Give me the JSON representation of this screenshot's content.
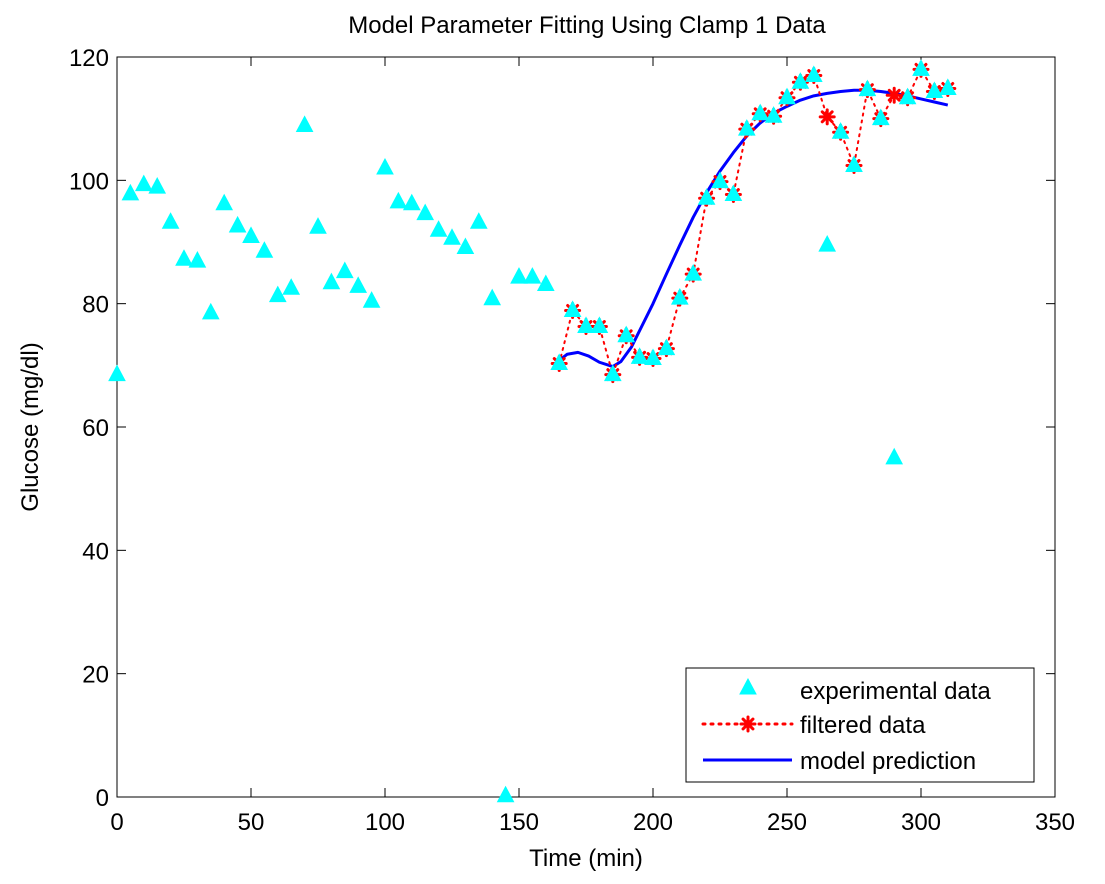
{
  "chart_data": {
    "type": "scatter",
    "title": "Model Parameter Fitting Using Clamp 1 Data",
    "xlabel": "Time (min)",
    "ylabel": "Glucose (mg/dl)",
    "xlim": [
      0,
      350
    ],
    "ylim": [
      0,
      120
    ],
    "xticks": [
      0,
      50,
      100,
      150,
      200,
      250,
      300,
      350
    ],
    "yticks": [
      0,
      20,
      40,
      60,
      80,
      100,
      120
    ],
    "grid": false,
    "legend_position": "bottom-right",
    "series": [
      {
        "name": "experimental data",
        "style": "triangle markers",
        "color": "#00FFFF",
        "x": [
          0,
          5,
          10,
          15,
          20,
          25,
          30,
          35,
          40,
          45,
          50,
          55,
          60,
          65,
          70,
          75,
          80,
          85,
          90,
          95,
          100,
          105,
          110,
          115,
          120,
          125,
          130,
          135,
          140,
          145,
          150,
          155,
          160,
          165,
          170,
          175,
          180,
          185,
          190,
          195,
          200,
          205,
          210,
          215,
          220,
          225,
          230,
          235,
          240,
          245,
          250,
          255,
          260,
          265,
          270,
          275,
          280,
          285,
          290,
          295,
          300,
          305,
          310
        ],
        "y": [
          68.5,
          97.8,
          99.3,
          98.9,
          93.2,
          87.2,
          86.9,
          78.5,
          96.2,
          92.6,
          90.9,
          88.5,
          81.3,
          82.5,
          108.9,
          92.4,
          83.4,
          85.2,
          82.8,
          80.4,
          102.0,
          96.5,
          96.2,
          94.6,
          91.9,
          90.6,
          89.1,
          93.2,
          80.8,
          0.2,
          84.3,
          84.3,
          83.1,
          70.3,
          78.9,
          76.3,
          76.3,
          68.5,
          74.8,
          71.3,
          71.1,
          72.7,
          80.9,
          84.8,
          97.1,
          99.8,
          97.7,
          108.3,
          110.8,
          110.4,
          113.4,
          115.9,
          117.0,
          89.5,
          107.8,
          102.4,
          114.7,
          110.0,
          55.0,
          113.4,
          118.0,
          114.4,
          114.9
        ]
      },
      {
        "name": "filtered data",
        "style": "dotted line with asterisk markers",
        "color": "#FF0000",
        "x": [
          165,
          170,
          175,
          180,
          185,
          190,
          195,
          200,
          205,
          210,
          215,
          220,
          225,
          230,
          235,
          240,
          245,
          250,
          255,
          260,
          265,
          270,
          275,
          280,
          285,
          290,
          295,
          300,
          305,
          310
        ],
        "y": [
          70.3,
          78.9,
          76.3,
          76.3,
          68.5,
          74.8,
          71.3,
          71.1,
          72.7,
          80.9,
          84.8,
          97.1,
          99.8,
          97.7,
          108.3,
          110.8,
          110.4,
          113.4,
          115.9,
          117.0,
          110.3,
          107.8,
          102.4,
          114.7,
          110.0,
          113.8,
          113.4,
          118.0,
          114.4,
          114.9
        ]
      },
      {
        "name": "model prediction",
        "style": "solid line",
        "color": "#0000FF",
        "x": [
          165,
          168,
          172,
          176,
          180,
          185,
          188,
          192,
          196,
          200,
          205,
          210,
          215,
          220,
          225,
          230,
          235,
          240,
          245,
          250,
          255,
          260,
          265,
          270,
          275,
          280,
          285,
          290,
          295,
          300,
          305,
          310
        ],
        "y": [
          70.8,
          71.8,
          72.1,
          71.5,
          70.5,
          69.8,
          70.6,
          73.0,
          76.5,
          80.0,
          84.8,
          89.5,
          94.0,
          98.0,
          101.5,
          104.5,
          107.2,
          109.3,
          110.9,
          112.0,
          113.0,
          113.7,
          114.1,
          114.4,
          114.6,
          114.6,
          114.4,
          114.1,
          113.7,
          113.2,
          112.7,
          112.2
        ]
      }
    ]
  }
}
